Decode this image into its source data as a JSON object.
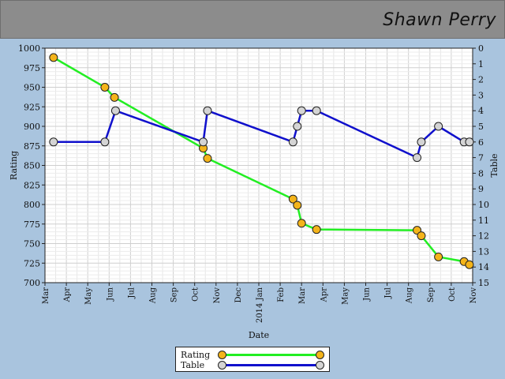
{
  "header": {
    "player_name": "Shawn Perry"
  },
  "chart_data": {
    "type": "line",
    "x_axis": {
      "label": "Date",
      "year_label": "2014 Jan",
      "ticks": [
        {
          "month": 0,
          "label": "Mar"
        },
        {
          "month": 1,
          "label": "Apr"
        },
        {
          "month": 2,
          "label": "May"
        },
        {
          "month": 3,
          "label": "Jun"
        },
        {
          "month": 4,
          "label": "Jul"
        },
        {
          "month": 5,
          "label": "Aug"
        },
        {
          "month": 6,
          "label": "Sep"
        },
        {
          "month": 7,
          "label": "Oct"
        },
        {
          "month": 8,
          "label": "Nov"
        },
        {
          "month": 9,
          "label": "Dec"
        },
        {
          "month": 10,
          "label": "2014 Jan"
        },
        {
          "month": 11,
          "label": "Feb"
        },
        {
          "month": 12,
          "label": "Mar"
        },
        {
          "month": 13,
          "label": "Apr"
        },
        {
          "month": 14,
          "label": "May"
        },
        {
          "month": 15,
          "label": "Jun"
        },
        {
          "month": 16,
          "label": "Jul"
        },
        {
          "month": 17,
          "label": "Aug"
        },
        {
          "month": 18,
          "label": "Sep"
        },
        {
          "month": 19,
          "label": "Oct"
        },
        {
          "month": 20,
          "label": "Nov"
        }
      ],
      "range_months": [
        0,
        20
      ]
    },
    "y_left": {
      "label": "Rating",
      "ylim": [
        700,
        1000
      ],
      "ticks": [
        700,
        725,
        750,
        775,
        800,
        825,
        850,
        875,
        900,
        925,
        950,
        975,
        1000
      ]
    },
    "y_right": {
      "label": "Table",
      "ylim": [
        15,
        0
      ],
      "ticks": [
        0,
        1,
        2,
        3,
        4,
        5,
        6,
        7,
        8,
        9,
        10,
        11,
        12,
        13,
        14,
        15
      ]
    },
    "grid": true,
    "series": [
      {
        "name": "Rating",
        "axis": "left",
        "line_color": "#22ee22",
        "marker_color": "#f4b41a",
        "points": [
          {
            "month": 0.4,
            "value": 988
          },
          {
            "month": 2.8,
            "value": 950
          },
          {
            "month": 3.25,
            "value": 937
          },
          {
            "month": 7.4,
            "value": 872
          },
          {
            "month": 7.6,
            "value": 859
          },
          {
            "month": 11.6,
            "value": 807
          },
          {
            "month": 11.8,
            "value": 799
          },
          {
            "month": 12.0,
            "value": 776
          },
          {
            "month": 12.7,
            "value": 768
          },
          {
            "month": 17.4,
            "value": 767
          },
          {
            "month": 17.6,
            "value": 760
          },
          {
            "month": 18.4,
            "value": 733
          },
          {
            "month": 19.6,
            "value": 727
          },
          {
            "month": 19.85,
            "value": 723
          }
        ]
      },
      {
        "name": "Table",
        "axis": "right",
        "line_color": "#1010cc",
        "marker_color": "#d4d4d4",
        "points": [
          {
            "month": 0.4,
            "value": 6
          },
          {
            "month": 2.8,
            "value": 6
          },
          {
            "month": 3.3,
            "value": 4
          },
          {
            "month": 7.4,
            "value": 6
          },
          {
            "month": 7.6,
            "value": 4
          },
          {
            "month": 11.6,
            "value": 6
          },
          {
            "month": 11.8,
            "value": 5
          },
          {
            "month": 12.0,
            "value": 4
          },
          {
            "month": 12.7,
            "value": 4
          },
          {
            "month": 17.4,
            "value": 7
          },
          {
            "month": 17.6,
            "value": 6
          },
          {
            "month": 18.4,
            "value": 5
          },
          {
            "month": 19.6,
            "value": 6
          },
          {
            "month": 19.85,
            "value": 6
          }
        ]
      }
    ],
    "legend": {
      "position": "bottom-center"
    }
  }
}
